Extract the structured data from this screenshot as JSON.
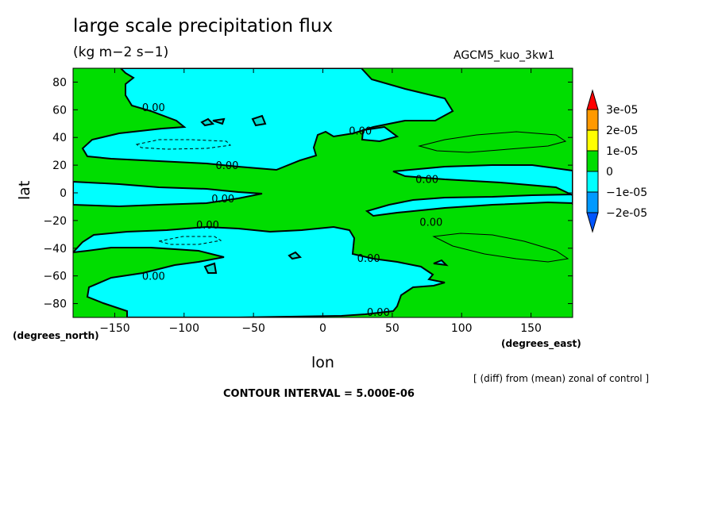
{
  "chart_data": {
    "type": "contour",
    "title": "large scale precipitation flux",
    "units": "(kg m−2 s−1)",
    "run_name": "AGCM5_kuo_3kw1",
    "xlabel": "lon",
    "ylabel": "lat",
    "x_units": "(degrees_east)",
    "y_units": "(degrees_north)",
    "xlim": [
      -180,
      180
    ],
    "ylim": [
      -90,
      90
    ],
    "x_ticks": [
      -150,
      -100,
      -50,
      0,
      50,
      100,
      150
    ],
    "x_tick_labels": [
      "−150",
      "−100",
      "−50",
      "0",
      "50",
      "100",
      "150"
    ],
    "y_ticks": [
      80,
      60,
      40,
      20,
      0,
      -20,
      -40,
      -60,
      -80
    ],
    "y_tick_labels": [
      "80",
      "60",
      "40",
      "20",
      "0",
      "−20",
      "−40",
      "−60",
      "−80"
    ],
    "note": "[ (diff) from (mean) zonal of control ]",
    "contour_interval": "CONTOUR INTERVAL = 5.000E-06",
    "contour_labels": [
      {
        "text": "0.00",
        "lon": -122,
        "lat": 62
      },
      {
        "text": "0.00",
        "lon": 27,
        "lat": 45
      },
      {
        "text": "0.00",
        "lon": -69,
        "lat": 20
      },
      {
        "text": "0.00",
        "lon": 75,
        "lat": 10
      },
      {
        "text": "0.00",
        "lon": -72,
        "lat": -4
      },
      {
        "text": "0.00",
        "lon": -83,
        "lat": -23
      },
      {
        "text": "0.00",
        "lon": 78,
        "lat": -21
      },
      {
        "text": "0.00",
        "lon": 33,
        "lat": -47
      },
      {
        "text": "0.00",
        "lon": -122,
        "lat": -60
      },
      {
        "text": "0.00",
        "lon": 40,
        "lat": -86
      }
    ],
    "colorbar": {
      "levels": [
        "3e-05",
        "2e-05",
        "1e-05",
        "0",
        "−1e-05",
        "−2e-05"
      ],
      "colors": [
        "#ff0000",
        "#ff9900",
        "#ffff00",
        "#00dd00",
        "#00ffff",
        "#0099ff",
        "#0055ff"
      ]
    }
  }
}
